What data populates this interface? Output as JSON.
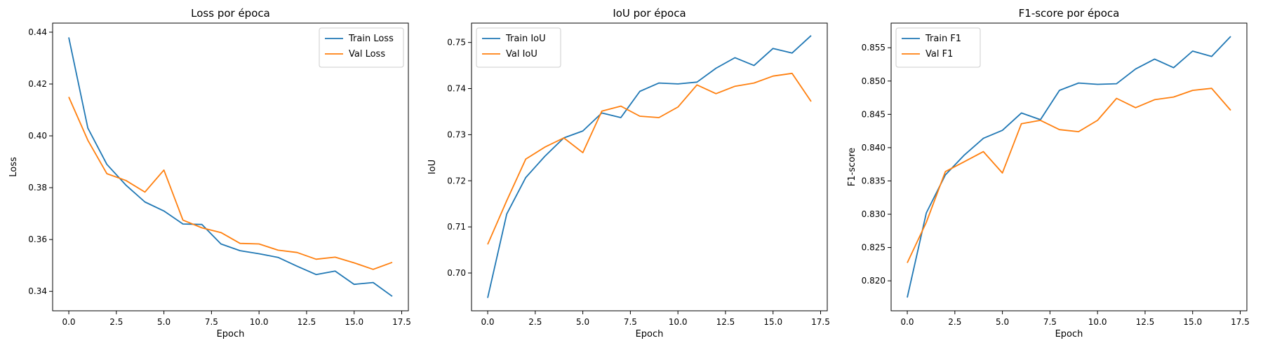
{
  "chart_data": [
    {
      "type": "line",
      "title": "Loss por época",
      "xlabel": "Epoch",
      "ylabel": "Loss",
      "xlim": [
        -0.85,
        17.85
      ],
      "ylim": [
        0.3325,
        0.4435
      ],
      "xticks": [
        0.0,
        2.5,
        5.0,
        7.5,
        10.0,
        12.5,
        15.0,
        17.5
      ],
      "xtick_labels": [
        "0.0",
        "2.5",
        "5.0",
        "7.5",
        "10.0",
        "12.5",
        "15.0",
        "17.5"
      ],
      "yticks": [
        0.34,
        0.36,
        0.38,
        0.4,
        0.42,
        0.44
      ],
      "ytick_labels": [
        "0.34",
        "0.36",
        "0.38",
        "0.40",
        "0.42",
        "0.44"
      ],
      "legend_position": "top-right",
      "x": [
        0,
        1,
        2,
        3,
        4,
        5,
        6,
        7,
        8,
        9,
        10,
        11,
        12,
        13,
        14,
        15,
        16,
        17
      ],
      "series": [
        {
          "name": "Train Loss",
          "color": "#1f77b4",
          "values": [
            0.438,
            0.403,
            0.389,
            0.381,
            0.3745,
            0.371,
            0.366,
            0.3658,
            0.3583,
            0.3557,
            0.3545,
            0.3531,
            0.3497,
            0.3465,
            0.3478,
            0.3427,
            0.3434,
            0.3381
          ]
        },
        {
          "name": "Val Loss",
          "color": "#ff7f0e",
          "values": [
            0.415,
            0.3983,
            0.3854,
            0.3828,
            0.3783,
            0.3868,
            0.3675,
            0.3645,
            0.3627,
            0.3585,
            0.3583,
            0.3559,
            0.355,
            0.3524,
            0.3532,
            0.351,
            0.3485,
            0.3512
          ]
        }
      ]
    },
    {
      "type": "line",
      "title": "IoU por época",
      "xlabel": "Epoch",
      "ylabel": "IoU",
      "xlim": [
        -0.85,
        17.85
      ],
      "ylim": [
        0.6918,
        0.7542
      ],
      "xticks": [
        0.0,
        2.5,
        5.0,
        7.5,
        10.0,
        12.5,
        15.0,
        17.5
      ],
      "xtick_labels": [
        "0.0",
        "2.5",
        "5.0",
        "7.5",
        "10.0",
        "12.5",
        "15.0",
        "17.5"
      ],
      "yticks": [
        0.7,
        0.71,
        0.72,
        0.73,
        0.74,
        0.75
      ],
      "ytick_labels": [
        "0.70",
        "0.71",
        "0.72",
        "0.73",
        "0.74",
        "0.75"
      ],
      "legend_position": "top-left",
      "x": [
        0,
        1,
        2,
        3,
        4,
        5,
        6,
        7,
        8,
        9,
        10,
        11,
        12,
        13,
        14,
        15,
        16,
        17
      ],
      "series": [
        {
          "name": "Train IoU",
          "color": "#1f77b4",
          "values": [
            0.6946,
            0.7128,
            0.7207,
            0.7253,
            0.7293,
            0.7308,
            0.7347,
            0.7337,
            0.7394,
            0.7412,
            0.741,
            0.7414,
            0.7444,
            0.7467,
            0.745,
            0.7487,
            0.7477,
            0.7515
          ]
        },
        {
          "name": "Val IoU",
          "color": "#ff7f0e",
          "values": [
            0.7062,
            0.7157,
            0.7247,
            0.7273,
            0.7293,
            0.7261,
            0.7351,
            0.7362,
            0.734,
            0.7337,
            0.736,
            0.7408,
            0.7389,
            0.7405,
            0.7412,
            0.7427,
            0.7433,
            0.7372
          ]
        }
      ]
    },
    {
      "type": "line",
      "title": "F1-score por época",
      "xlabel": "Epoch",
      "ylabel": "F1-score",
      "xlim": [
        -0.85,
        17.85
      ],
      "ylim": [
        0.8155,
        0.8587
      ],
      "xticks": [
        0.0,
        2.5,
        5.0,
        7.5,
        10.0,
        12.5,
        15.0,
        17.5
      ],
      "xtick_labels": [
        "0.0",
        "2.5",
        "5.0",
        "7.5",
        "10.0",
        "12.5",
        "15.0",
        "17.5"
      ],
      "yticks": [
        0.82,
        0.825,
        0.83,
        0.835,
        0.84,
        0.845,
        0.85,
        0.855
      ],
      "ytick_labels": [
        "0.820",
        "0.825",
        "0.830",
        "0.835",
        "0.840",
        "0.845",
        "0.850",
        "0.855"
      ],
      "legend_position": "top-left",
      "x": [
        0,
        1,
        2,
        3,
        4,
        5,
        6,
        7,
        8,
        9,
        10,
        11,
        12,
        13,
        14,
        15,
        16,
        17
      ],
      "series": [
        {
          "name": "Train F1",
          "color": "#1f77b4",
          "values": [
            0.8175,
            0.8302,
            0.8359,
            0.8389,
            0.8414,
            0.8426,
            0.8452,
            0.8442,
            0.8486,
            0.8497,
            0.8495,
            0.8496,
            0.8518,
            0.8533,
            0.852,
            0.8545,
            0.8537,
            0.8567
          ]
        },
        {
          "name": "Val F1",
          "color": "#ff7f0e",
          "values": [
            0.8227,
            0.8288,
            0.8364,
            0.8379,
            0.8394,
            0.8362,
            0.8436,
            0.8441,
            0.8427,
            0.8424,
            0.8441,
            0.8474,
            0.846,
            0.8472,
            0.8476,
            0.8486,
            0.8489,
            0.8456
          ]
        }
      ]
    }
  ]
}
